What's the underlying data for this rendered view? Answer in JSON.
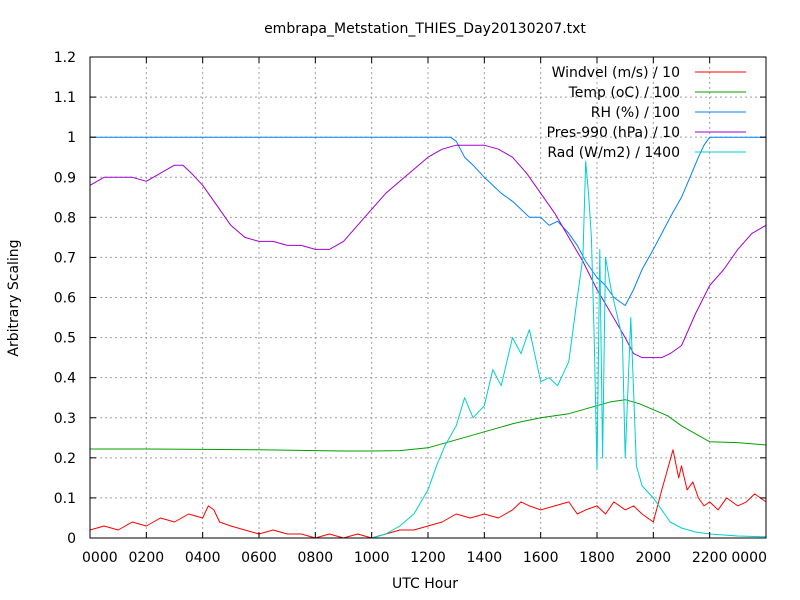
{
  "chart_data": {
    "type": "line",
    "title": "embrapa_Metstation_THIES_Day20130207.txt",
    "xlabel": "UTC Hour",
    "ylabel": "Arbitrary Scaling",
    "xlim": [
      0,
      24
    ],
    "ylim": [
      0,
      1.2
    ],
    "x_ticks": [
      {
        "x": 0,
        "label": "0000"
      },
      {
        "x": 2,
        "label": "0200"
      },
      {
        "x": 4,
        "label": "0400"
      },
      {
        "x": 6,
        "label": "0600"
      },
      {
        "x": 8,
        "label": "0800"
      },
      {
        "x": 10,
        "label": "1000"
      },
      {
        "x": 12,
        "label": "1200"
      },
      {
        "x": 14,
        "label": "1400"
      },
      {
        "x": 16,
        "label": "1600"
      },
      {
        "x": 18,
        "label": "1800"
      },
      {
        "x": 20,
        "label": "2000"
      },
      {
        "x": 22,
        "label": "2200"
      },
      {
        "x": 24,
        "label": "0000"
      }
    ],
    "y_ticks": [
      {
        "y": 0,
        "label": "0"
      },
      {
        "y": 0.1,
        "label": "0.1"
      },
      {
        "y": 0.2,
        "label": "0.2"
      },
      {
        "y": 0.3,
        "label": "0.3"
      },
      {
        "y": 0.4,
        "label": "0.4"
      },
      {
        "y": 0.5,
        "label": "0.5"
      },
      {
        "y": 0.6,
        "label": "0.6"
      },
      {
        "y": 0.7,
        "label": "0.7"
      },
      {
        "y": 0.8,
        "label": "0.8"
      },
      {
        "y": 0.9,
        "label": "0.9"
      },
      {
        "y": 1.0,
        "label": "1"
      },
      {
        "y": 1.1,
        "label": "1.1"
      },
      {
        "y": 1.2,
        "label": "1.2"
      }
    ],
    "grid": true,
    "legend_position": "top-right",
    "series": [
      {
        "name": "Windvel (m/s) / 10",
        "color": "#ff0000",
        "x": [
          0,
          0.5,
          1,
          1.5,
          2,
          2.5,
          3,
          3.5,
          4,
          4.2,
          4.4,
          4.6,
          5,
          5.5,
          6,
          6.5,
          7,
          7.5,
          8,
          8.5,
          9,
          9.5,
          10,
          10.5,
          11,
          11.5,
          12,
          12.5,
          13,
          13.5,
          14,
          14.5,
          15,
          15.3,
          15.6,
          16,
          16.5,
          17,
          17.3,
          17.6,
          18,
          18.3,
          18.6,
          19,
          19.3,
          19.6,
          20,
          20.3,
          20.5,
          20.7,
          20.9,
          21,
          21.2,
          21.4,
          21.6,
          21.8,
          22,
          22.3,
          22.6,
          23,
          23.3,
          23.6,
          24
        ],
        "y": [
          0.02,
          0.03,
          0.02,
          0.04,
          0.03,
          0.05,
          0.04,
          0.06,
          0.05,
          0.08,
          0.07,
          0.04,
          0.03,
          0.02,
          0.01,
          0.02,
          0.01,
          0.01,
          0,
          0.01,
          0,
          0.01,
          0,
          0.01,
          0.02,
          0.02,
          0.03,
          0.04,
          0.06,
          0.05,
          0.06,
          0.05,
          0.07,
          0.09,
          0.08,
          0.07,
          0.08,
          0.09,
          0.06,
          0.07,
          0.08,
          0.06,
          0.09,
          0.07,
          0.08,
          0.06,
          0.04,
          0.12,
          0.17,
          0.22,
          0.15,
          0.18,
          0.12,
          0.14,
          0.1,
          0.08,
          0.09,
          0.07,
          0.1,
          0.08,
          0.09,
          0.11,
          0.09
        ]
      },
      {
        "name": "Temp (oC) / 100",
        "color": "#00a000",
        "x": [
          0,
          2,
          4,
          6,
          8,
          9,
          10,
          11,
          12,
          12.5,
          13,
          13.5,
          14,
          14.5,
          15,
          15.5,
          16,
          16.5,
          17,
          17.5,
          18,
          18.5,
          19,
          19.5,
          20,
          20.5,
          21,
          21.5,
          22,
          23,
          24
        ],
        "y": [
          0.222,
          0.222,
          0.221,
          0.22,
          0.218,
          0.217,
          0.217,
          0.218,
          0.225,
          0.235,
          0.245,
          0.255,
          0.265,
          0.275,
          0.285,
          0.293,
          0.3,
          0.305,
          0.31,
          0.32,
          0.33,
          0.34,
          0.345,
          0.335,
          0.32,
          0.305,
          0.28,
          0.26,
          0.24,
          0.238,
          0.232
        ]
      },
      {
        "name": "RH (%) / 100",
        "color": "#0080ff",
        "x": [
          0,
          2,
          4,
          6,
          8,
          10,
          12,
          12.8,
          13,
          13.3,
          13.6,
          14,
          14.3,
          14.6,
          15,
          15.3,
          15.6,
          16,
          16.3,
          16.6,
          17,
          17.3,
          17.6,
          18,
          18.3,
          18.6,
          19,
          19.3,
          19.6,
          20,
          20.3,
          20.6,
          21,
          21.3,
          21.6,
          21.8,
          22,
          23,
          24
        ],
        "y": [
          1,
          1,
          1,
          1,
          1,
          1,
          1,
          1,
          0.99,
          0.95,
          0.93,
          0.9,
          0.88,
          0.86,
          0.84,
          0.82,
          0.8,
          0.8,
          0.78,
          0.79,
          0.76,
          0.73,
          0.69,
          0.65,
          0.63,
          0.6,
          0.58,
          0.62,
          0.67,
          0.72,
          0.76,
          0.8,
          0.85,
          0.9,
          0.95,
          0.98,
          1,
          1,
          1
        ]
      },
      {
        "name": "Pres-990 (hPa) / 10",
        "color": "#a000d0",
        "x": [
          0,
          0.5,
          1,
          1.5,
          2,
          2.5,
          3,
          3.3,
          3.6,
          4,
          4.5,
          5,
          5.5,
          6,
          6.5,
          7,
          7.5,
          8,
          8.5,
          9,
          9.5,
          10,
          10.5,
          11,
          11.5,
          12,
          12.5,
          13,
          13.5,
          14,
          14.5,
          15,
          15.5,
          16,
          16.5,
          17,
          17.5,
          18,
          18.5,
          19,
          19.3,
          19.6,
          20,
          20.3,
          20.6,
          21,
          21.5,
          22,
          22.5,
          23,
          23.5,
          24
        ],
        "y": [
          0.88,
          0.9,
          0.9,
          0.9,
          0.89,
          0.91,
          0.93,
          0.93,
          0.91,
          0.88,
          0.83,
          0.78,
          0.75,
          0.74,
          0.74,
          0.73,
          0.73,
          0.72,
          0.72,
          0.74,
          0.78,
          0.82,
          0.86,
          0.89,
          0.92,
          0.95,
          0.97,
          0.98,
          0.98,
          0.98,
          0.97,
          0.95,
          0.91,
          0.86,
          0.81,
          0.75,
          0.69,
          0.62,
          0.56,
          0.5,
          0.46,
          0.45,
          0.45,
          0.45,
          0.46,
          0.48,
          0.56,
          0.63,
          0.67,
          0.72,
          0.76,
          0.78
        ]
      },
      {
        "name": "Rad (W/m2) / 1400",
        "color": "#00d0d0",
        "x": [
          0,
          2,
          4,
          6,
          8,
          10,
          10.5,
          11,
          11.5,
          12,
          12.3,
          12.6,
          13,
          13.3,
          13.6,
          14,
          14.3,
          14.6,
          15,
          15.3,
          15.6,
          16,
          16.3,
          16.6,
          17,
          17.3,
          17.5,
          17.6,
          17.7,
          17.8,
          17.9,
          18,
          18.1,
          18.2,
          18.3,
          18.5,
          18.7,
          18.9,
          19,
          19.2,
          19.4,
          19.6,
          20,
          20.3,
          20.6,
          21,
          21.5,
          22,
          23,
          24
        ],
        "y": [
          0,
          0,
          0,
          0,
          0,
          0,
          0.01,
          0.03,
          0.06,
          0.12,
          0.18,
          0.23,
          0.28,
          0.35,
          0.3,
          0.33,
          0.42,
          0.38,
          0.5,
          0.46,
          0.52,
          0.39,
          0.4,
          0.38,
          0.44,
          0.6,
          0.7,
          0.94,
          0.86,
          0.75,
          0.5,
          0.17,
          0.72,
          0.2,
          0.7,
          0.62,
          0.56,
          0.5,
          0.2,
          0.55,
          0.18,
          0.13,
          0.1,
          0.07,
          0.04,
          0.025,
          0.015,
          0.01,
          0.005,
          0.003
        ]
      }
    ]
  }
}
